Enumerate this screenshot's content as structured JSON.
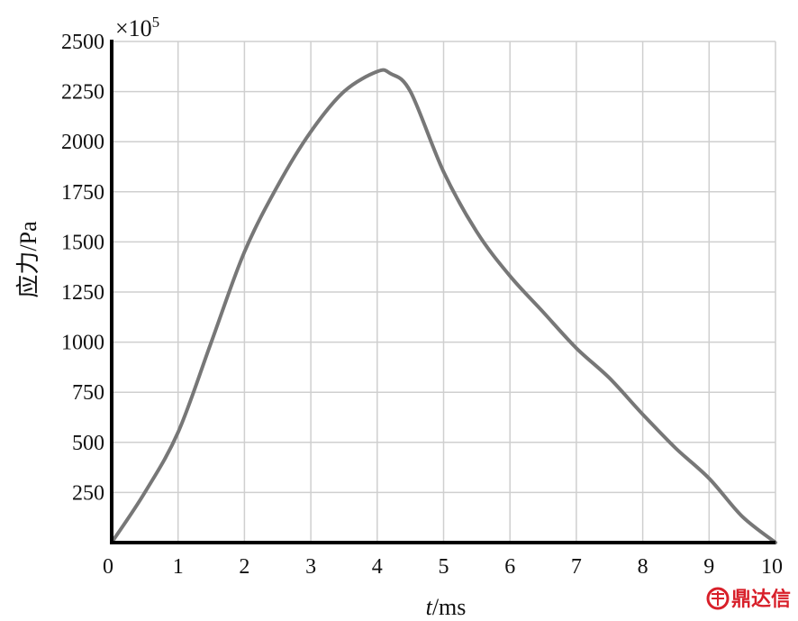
{
  "chart_data": {
    "type": "line",
    "title": "",
    "xlabel": "t/ms",
    "xlabel_var": "t",
    "xlabel_unit": "/ms",
    "ylabel": "应力/Pa",
    "y_multiplier_label": "×10",
    "y_multiplier_exp": "5",
    "xlim": [
      0,
      10
    ],
    "ylim": [
      0,
      2500
    ],
    "x_ticks": [
      0,
      1,
      2,
      3,
      4,
      5,
      6,
      7,
      8,
      9,
      10
    ],
    "y_ticks": [
      250,
      500,
      750,
      1000,
      1250,
      1500,
      1750,
      2000,
      2250,
      2500
    ],
    "grid": true,
    "series": [
      {
        "color": "#777777",
        "x": [
          0,
          0.5,
          1,
          1.5,
          2,
          2.5,
          3,
          3.5,
          4,
          4.2,
          4.5,
          5,
          5.5,
          6,
          6.5,
          7,
          7.5,
          8,
          8.5,
          9,
          9.5,
          10
        ],
        "y": [
          0,
          250,
          550,
          1000,
          1450,
          1780,
          2050,
          2250,
          2350,
          2340,
          2250,
          1850,
          1550,
          1330,
          1150,
          970,
          820,
          640,
          470,
          320,
          130,
          0
        ]
      }
    ]
  },
  "watermark": {
    "text": "鼎达信",
    "color": "#d8202a"
  }
}
